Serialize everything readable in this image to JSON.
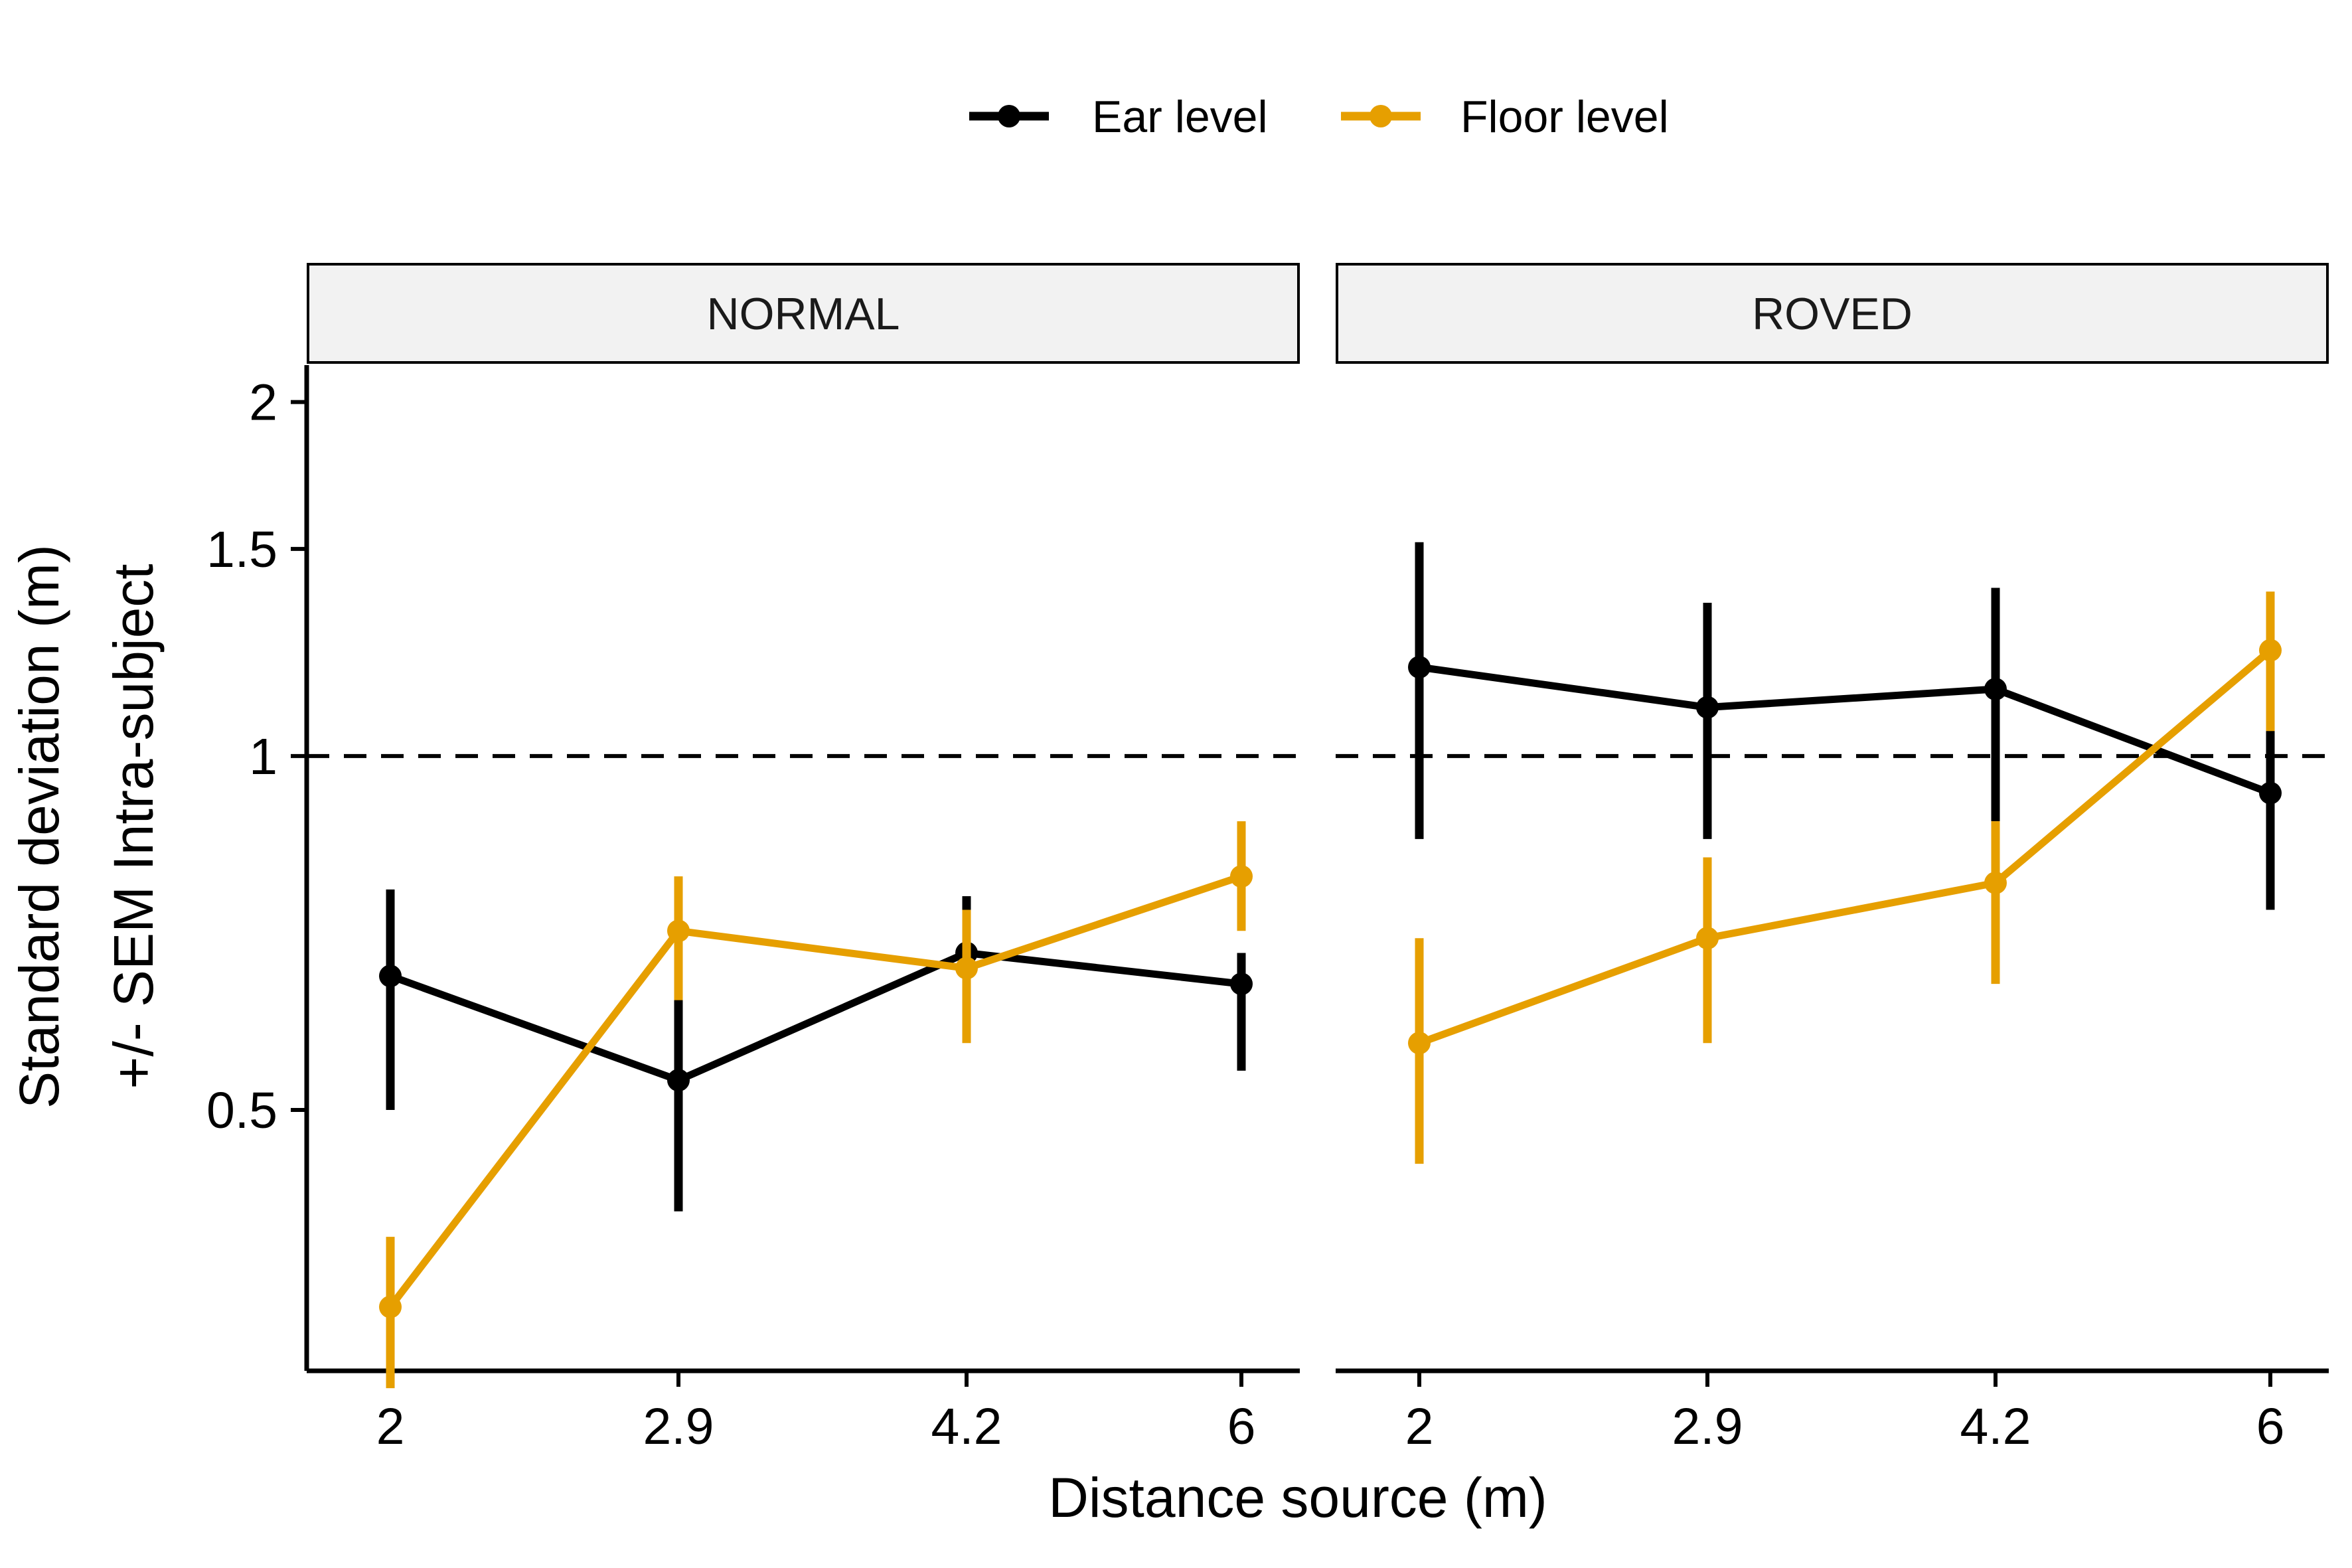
{
  "chart_data": {
    "type": "line",
    "facets": [
      "NORMAL",
      "ROVED"
    ],
    "xlabel": "Distance source (m)",
    "ylabel_line1": "Standard deviation (m)",
    "ylabel_line2": "+/- SEM Intra-subject",
    "x_categories": [
      "2",
      "2.9",
      "4.2",
      "6"
    ],
    "y_scale": "log",
    "ylim": [
      0.3,
      2.15
    ],
    "y_ticks": [
      0.5,
      1,
      1.5,
      2
    ],
    "y_tick_labels": [
      "0.5",
      "1",
      "1.5",
      "2"
    ],
    "reference_line": {
      "y": 1,
      "style": "dashed"
    },
    "legend_position": "top",
    "series": [
      {
        "name": "Ear level",
        "color": "#000000",
        "facets": {
          "NORMAL": {
            "y": [
              0.65,
              0.53,
              0.68,
              0.64
            ],
            "lo": [
              0.5,
              0.41,
              0.61,
              0.54
            ],
            "hi": [
              0.77,
              0.63,
              0.76,
              0.68
            ]
          },
          "ROVED": {
            "y": [
              1.19,
              1.1,
              1.14,
              0.93
            ],
            "lo": [
              0.85,
              0.85,
              0.88,
              0.74
            ],
            "hi": [
              1.52,
              1.35,
              1.39,
              1.06
            ]
          }
        }
      },
      {
        "name": "Floor level",
        "color": "#E69F00",
        "facets": {
          "NORMAL": {
            "y": [
              0.34,
              0.71,
              0.66,
              0.79
            ],
            "lo": [
              0.29,
              0.62,
              0.57,
              0.71
            ],
            "hi": [
              0.39,
              0.79,
              0.74,
              0.88
            ]
          },
          "ROVED": {
            "y": [
              0.57,
              0.7,
              0.78,
              1.23
            ],
            "lo": [
              0.45,
              0.57,
              0.64,
              1.05
            ],
            "hi": [
              0.7,
              0.82,
              0.88,
              1.38
            ]
          }
        }
      }
    ]
  }
}
